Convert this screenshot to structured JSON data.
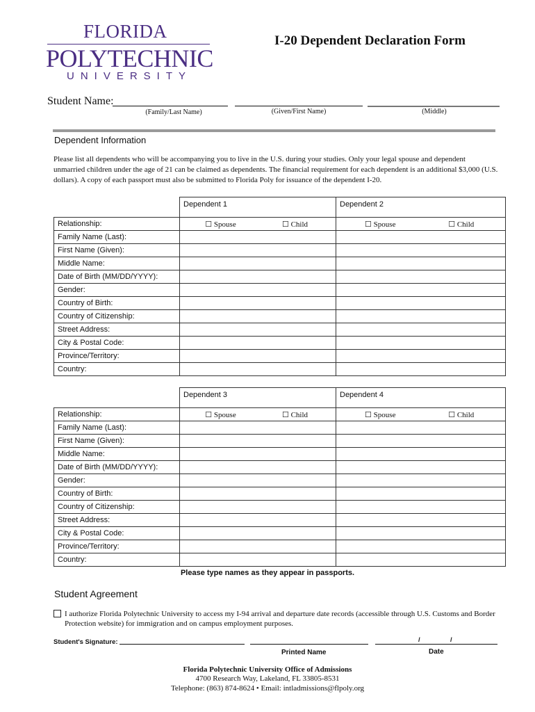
{
  "logo": {
    "line1": "FLORIDA",
    "line2": "POLYTECHNIC",
    "line3": "UNIVERSITY"
  },
  "title": "I-20 Dependent Declaration Form",
  "student_name": {
    "label": "Student Name:",
    "family": "(Family/Last Name)",
    "given": "(Given/First Name)",
    "middle": "(Middle)"
  },
  "dependent_info": {
    "heading": "Dependent Information",
    "intro": "Please list all dependents who will be accompanying you to live in the U.S. during your studies. Only your legal spouse and dependent unmarried children under the age of 21 can be claimed as dependents. The financial requirement for each dependent is an additional $3,000 (U.S. dollars). A copy of each passport must also be submitted to Florida Poly for issuance of the dependent I-20."
  },
  "fields": [
    "Relationship:",
    "Family Name (Last):",
    "First Name (Given):",
    "Middle Name:",
    "Date of Birth (MM/DD/YYYY):",
    "Gender:",
    "Country of Birth:",
    "Country of Citizenship:",
    "Street Address:",
    "City & Postal Code:",
    "Province/Territory:",
    "Country:"
  ],
  "checkbox_glyph": "☐",
  "relationship_options": [
    "Spouse",
    "Child"
  ],
  "tables": [
    {
      "headers": [
        "Dependent 1",
        "Dependent 2"
      ]
    },
    {
      "headers": [
        "Dependent 3",
        "Dependent 4"
      ]
    }
  ],
  "note": "Please type names as they appear in passports.",
  "agreement": {
    "heading": "Student Agreement",
    "text": "I authorize Florida Polytechnic University to access my I-94 arrival and departure date records (accessible through U.S. Customs and Border Protection website) for immigration and on campus employment purposes.",
    "signature_label": "Student's Signature:",
    "printed_name": "Printed Name",
    "date": "Date",
    "date_sep": "/"
  },
  "footer": {
    "office": "Florida Polytechnic University Office of Admissions",
    "address": "4700 Research Way, Lakeland, FL 33805-8531",
    "contact": "Telephone:  (863) 874-8624  • Email:  intladmissions@flpoly.org"
  }
}
